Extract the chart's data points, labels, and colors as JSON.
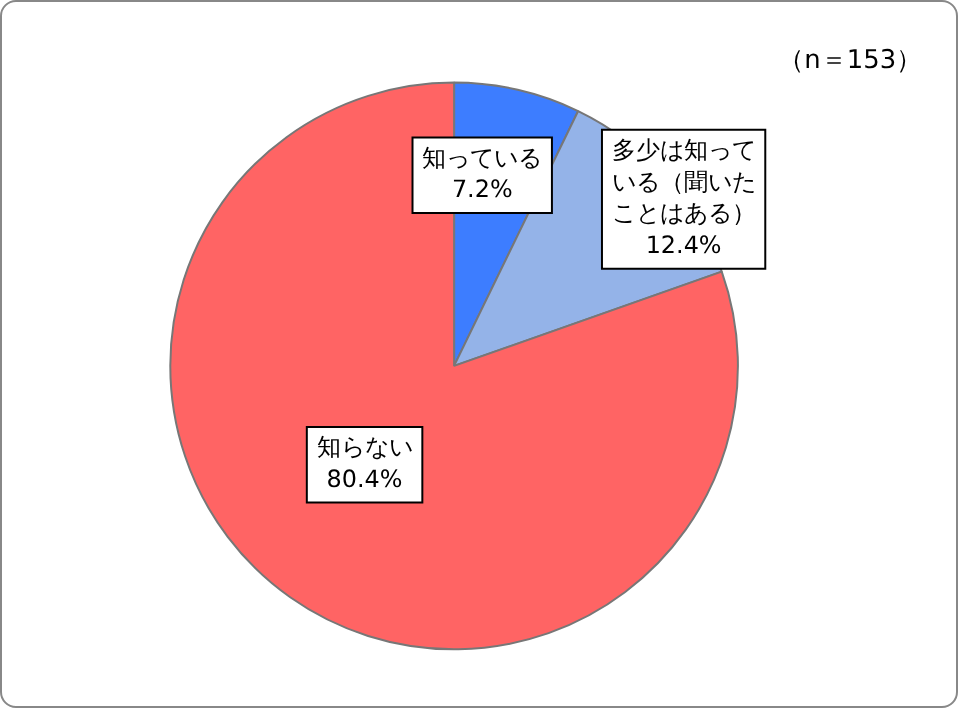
{
  "chart_data": {
    "type": "pie",
    "categories": [
      "知っている",
      "多少は知っている（聞いたことはある）",
      "知らない"
    ],
    "values": [
      7.2,
      12.4,
      80.4
    ],
    "value_labels": [
      "7.2%",
      "12.4%",
      "80.4%"
    ],
    "colors": [
      "#3d7dff",
      "#94b3e8",
      "#ff6464"
    ],
    "annotations": [
      "（n＝153）"
    ],
    "legend": false
  }
}
